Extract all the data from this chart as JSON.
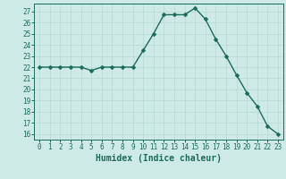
{
  "x": [
    0,
    1,
    2,
    3,
    4,
    5,
    6,
    7,
    8,
    9,
    10,
    11,
    12,
    13,
    14,
    15,
    16,
    17,
    18,
    19,
    20,
    21,
    22,
    23
  ],
  "y": [
    22,
    22,
    22,
    22,
    22,
    21.7,
    22,
    22,
    22,
    22,
    23.5,
    25,
    26.7,
    26.7,
    26.7,
    27.3,
    26.3,
    24.5,
    23,
    21.3,
    19.7,
    18.5,
    16.7,
    16
  ],
  "line_color": "#1a6b5a",
  "marker": "D",
  "marker_size": 2.5,
  "bg_color": "#ceeae7",
  "grid_color": "#b8d8d4",
  "xlabel": "Humidex (Indice chaleur)",
  "xlim": [
    -0.5,
    23.5
  ],
  "ylim": [
    15.5,
    27.7
  ],
  "yticks": [
    16,
    17,
    18,
    19,
    20,
    21,
    22,
    23,
    24,
    25,
    26,
    27
  ],
  "xticks": [
    0,
    1,
    2,
    3,
    4,
    5,
    6,
    7,
    8,
    9,
    10,
    11,
    12,
    13,
    14,
    15,
    16,
    17,
    18,
    19,
    20,
    21,
    22,
    23
  ],
  "xtick_labels": [
    "0",
    "1",
    "2",
    "3",
    "4",
    "5",
    "6",
    "7",
    "8",
    "9",
    "10",
    "11",
    "12",
    "13",
    "14",
    "15",
    "16",
    "17",
    "18",
    "19",
    "20",
    "21",
    "22",
    "23"
  ],
  "tick_color": "#1a6b5a",
  "label_fontsize": 7,
  "tick_fontsize": 5.5,
  "linewidth": 1.0
}
